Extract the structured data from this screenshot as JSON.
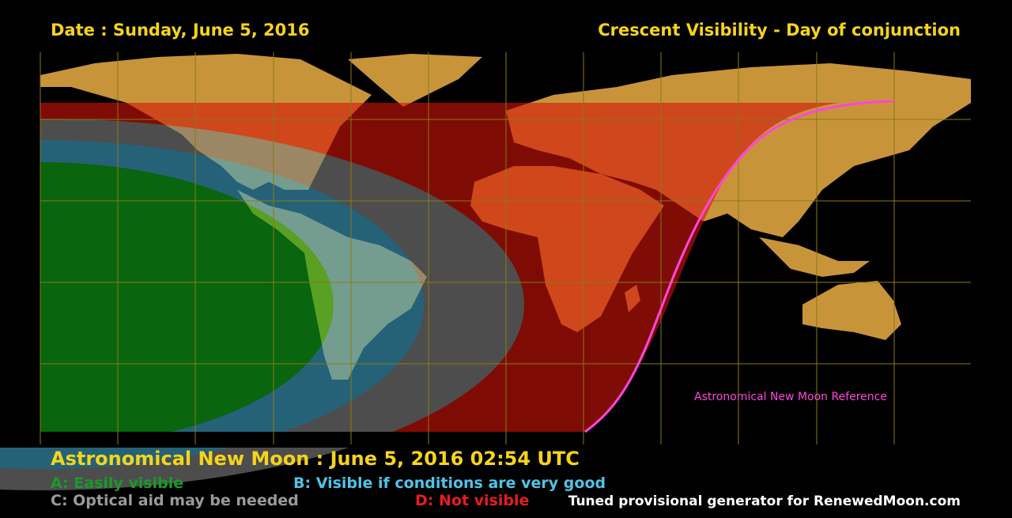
{
  "header": {
    "date": "Date : Sunday, June 5, 2016",
    "title": "Crescent Visibility - Day of conjunction"
  },
  "map": {
    "curve_label": "Astronomical New Moon Reference"
  },
  "footer": {
    "new_moon": "Astronomical New Moon : June 5, 2016 02:54 UTC",
    "legend": [
      "A: Easily visible",
      "B: Visible if conditions are very good",
      "C: Optical aid may be needed",
      "D: Not visible"
    ],
    "credit": "Tuned provisional generator for RenewedMoon.com"
  }
}
